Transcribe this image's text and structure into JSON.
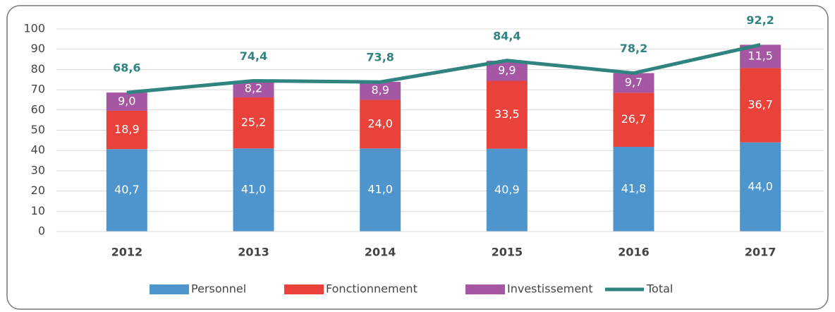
{
  "chart_data": {
    "type": "stacked-bar-line",
    "categories": [
      "2012",
      "2013",
      "2014",
      "2015",
      "2016",
      "2017"
    ],
    "series": [
      {
        "name": "Personnel",
        "color": "#4e95cd",
        "values": [
          40.7,
          41.0,
          41.0,
          40.9,
          41.8,
          44.0
        ],
        "value_labels": [
          "40,7",
          "41,0",
          "41,0",
          "40,9",
          "41,8",
          "44,0"
        ]
      },
      {
        "name": "Fonctionnement",
        "color": "#e8423b",
        "values": [
          18.9,
          25.2,
          24.0,
          33.5,
          26.7,
          36.7
        ],
        "value_labels": [
          "18,9",
          "25,2",
          "24,0",
          "33,5",
          "26,7",
          "36,7"
        ]
      },
      {
        "name": "Investissement",
        "color": "#a657a3",
        "values": [
          9.0,
          8.2,
          8.9,
          9.9,
          9.7,
          11.5
        ],
        "value_labels": [
          "9,0",
          "8,2",
          "8,9",
          "9,9",
          "9,7",
          "11,5"
        ]
      },
      {
        "name": "Total",
        "type": "line",
        "color": "#2f8480",
        "values": [
          68.6,
          74.4,
          73.8,
          84.4,
          78.2,
          92.2
        ],
        "value_labels": [
          "68,6",
          "74,4",
          "73,8",
          "84,4",
          "78,2",
          "92,2"
        ]
      }
    ],
    "ylim": [
      0,
      100
    ],
    "yticks": [
      0,
      10,
      20,
      30,
      40,
      50,
      60,
      70,
      80,
      90,
      100
    ],
    "grid": true,
    "legend": "bottom"
  }
}
